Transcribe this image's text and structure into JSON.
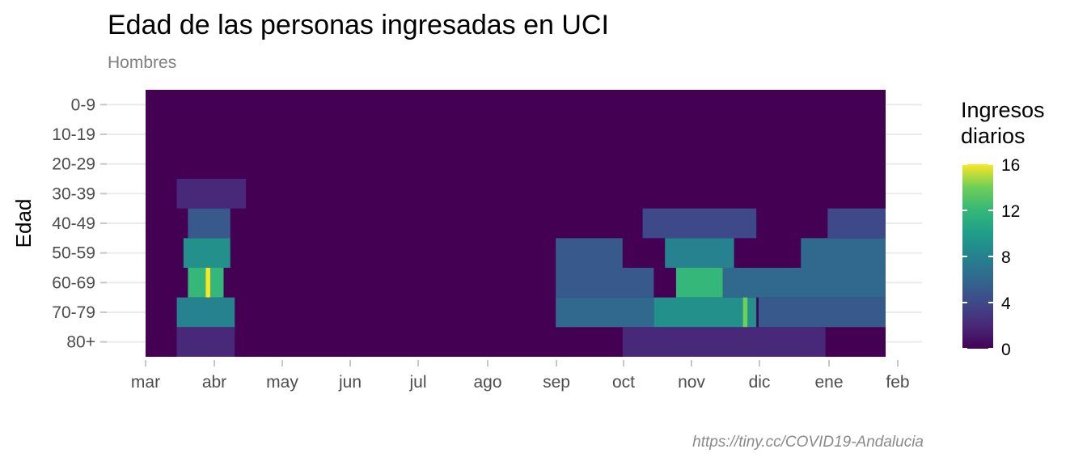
{
  "title": "Edad de las personas ingresadas en UCI",
  "subtitle": "Hombres",
  "caption": "https://tiny.cc/COVID19-Andalucia",
  "legend": {
    "title_line1": "Ingresos",
    "title_line2": "diarios",
    "ticks": [
      "0",
      "4",
      "8",
      "12",
      "16"
    ]
  },
  "colors": {
    "low": "#440154",
    "mid": "#21908c",
    "high": "#fde725"
  },
  "chart_data": {
    "type": "heatmap",
    "title": "Edad de las personas ingresadas en UCI",
    "subtitle": "Hombres",
    "ylabel": "Edad",
    "xlabel": "",
    "y_categories": [
      "0-9",
      "10-19",
      "20-29",
      "30-39",
      "40-49",
      "50-59",
      "60-69",
      "70-79",
      "80+"
    ],
    "x_ticks": [
      "mar",
      "abr",
      "may",
      "jun",
      "jul",
      "ago",
      "sep",
      "oct",
      "nov",
      "dic",
      "ene",
      "feb"
    ],
    "x_range": [
      "2020-03-01",
      "2021-01-27"
    ],
    "color_scale": "viridis",
    "value_range": [
      0,
      16
    ],
    "legend_title": "Ingresos diarios",
    "peaks": [
      {
        "age": "0-9",
        "start": "2020-03-01",
        "end": "2021-01-27",
        "value": 0
      },
      {
        "age": "10-19",
        "start": "2020-03-01",
        "end": "2021-01-27",
        "value": 0
      },
      {
        "age": "20-29",
        "start": "2020-03-01",
        "end": "2021-01-27",
        "value": 0
      },
      {
        "age": "30-39",
        "start": "2020-03-15",
        "end": "2020-04-15",
        "value": 2
      },
      {
        "age": "40-49",
        "start": "2020-03-20",
        "end": "2020-04-08",
        "value": 5
      },
      {
        "age": "40-49",
        "start": "2020-10-10",
        "end": "2020-11-30",
        "value": 4
      },
      {
        "age": "40-49",
        "start": "2021-01-01",
        "end": "2021-01-27",
        "value": 4
      },
      {
        "age": "50-59",
        "start": "2020-03-18",
        "end": "2020-04-08",
        "value": 9
      },
      {
        "age": "50-59",
        "start": "2020-09-01",
        "end": "2020-10-01",
        "value": 5
      },
      {
        "age": "50-59",
        "start": "2020-10-20",
        "end": "2020-11-20",
        "value": 8
      },
      {
        "age": "50-59",
        "start": "2020-12-20",
        "end": "2021-01-27",
        "value": 6
      },
      {
        "age": "60-69",
        "start": "2020-03-20",
        "end": "2020-04-05",
        "value": 12
      },
      {
        "age": "60-69",
        "start": "2020-03-28",
        "end": "2020-03-30",
        "value": 16
      },
      {
        "age": "60-69",
        "start": "2020-09-01",
        "end": "2020-10-15",
        "value": 5
      },
      {
        "age": "60-69",
        "start": "2020-10-25",
        "end": "2020-11-15",
        "value": 12
      },
      {
        "age": "60-69",
        "start": "2020-11-15",
        "end": "2021-01-27",
        "value": 6
      },
      {
        "age": "70-79",
        "start": "2020-03-15",
        "end": "2020-04-10",
        "value": 8
      },
      {
        "age": "70-79",
        "start": "2020-09-01",
        "end": "2020-10-15",
        "value": 6
      },
      {
        "age": "70-79",
        "start": "2020-10-15",
        "end": "2020-11-30",
        "value": 9
      },
      {
        "age": "70-79",
        "start": "2020-11-24",
        "end": "2020-11-26",
        "value": 14
      },
      {
        "age": "70-79",
        "start": "2020-12-01",
        "end": "2021-01-27",
        "value": 5
      },
      {
        "age": "80+",
        "start": "2020-03-15",
        "end": "2020-04-10",
        "value": 2
      },
      {
        "age": "80+",
        "start": "2020-10-01",
        "end": "2020-12-31",
        "value": 2
      }
    ]
  }
}
